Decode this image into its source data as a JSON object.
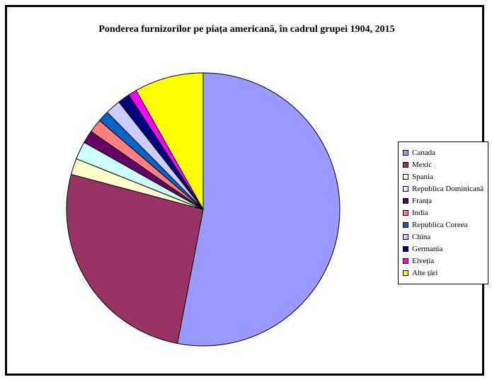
{
  "chart_data": {
    "type": "pie",
    "title": "Ponderea furnizorilor pe piața americană, în cadrul grupei 1904, 2015",
    "legend_position": "right",
    "slices": [
      {
        "label": "Canada",
        "value": 52.6,
        "color": "#9999ff"
      },
      {
        "label": "Mexic",
        "value": 25.9,
        "color": "#993366"
      },
      {
        "label": "Spania",
        "value": 1.9,
        "color": "#ffffcc"
      },
      {
        "label": "Republica Dominicană",
        "value": 2.1,
        "color": "#ccffff"
      },
      {
        "label": "Franța",
        "value": 1.5,
        "color": "#660066"
      },
      {
        "label": "India",
        "value": 1.6,
        "color": "#ff8080"
      },
      {
        "label": "Republica Coreea",
        "value": 1.3,
        "color": "#0066cc"
      },
      {
        "label": "China",
        "value": 1.8,
        "color": "#ccccff"
      },
      {
        "label": "Germania",
        "value": 1.4,
        "color": "#000080"
      },
      {
        "label": "Elveția",
        "value": 1.0,
        "color": "#ff00ff"
      },
      {
        "label": "Alte țări",
        "value": 8.1,
        "color": "#ffff00"
      }
    ]
  }
}
